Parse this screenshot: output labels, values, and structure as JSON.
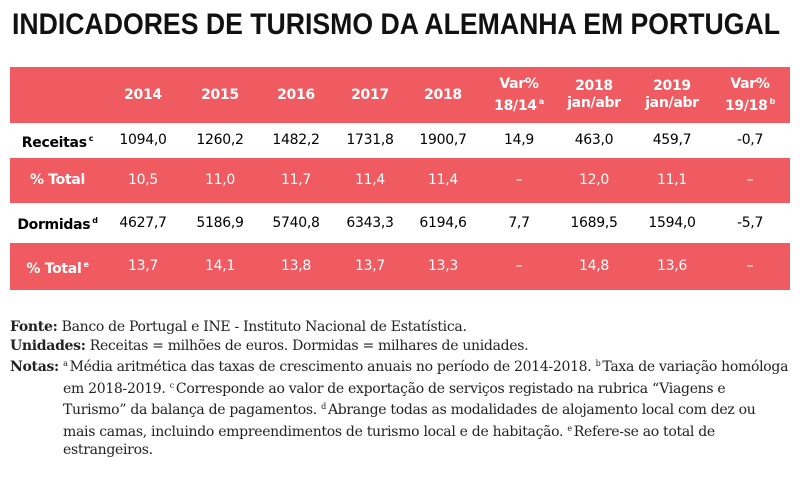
{
  "title": "INDICADORES DE TURISMO DA ALEMANHA EM PORTUGAL",
  "table": {
    "header": [
      {
        "line1": "2014"
      },
      {
        "line1": "2015"
      },
      {
        "line1": "2016"
      },
      {
        "line1": "2017"
      },
      {
        "line1": "2018"
      },
      {
        "line1": "Var%",
        "line2": "18/14",
        "sup": "a"
      },
      {
        "line1": "2018",
        "line2": "jan/abr"
      },
      {
        "line1": "2019",
        "line2": "jan/abr"
      },
      {
        "line1": "Var%",
        "line2": "19/18",
        "sup": "b"
      }
    ],
    "rows": [
      {
        "label": "Receitas",
        "sup": "c",
        "cells": [
          "1094,0",
          "1260,2",
          "1482,2",
          "1731,8",
          "1900,7",
          "14,9",
          "463,0",
          "459,7",
          "-0,7"
        ]
      },
      {
        "label": "% Total",
        "cells": [
          "10,5",
          "11,0",
          "11,7",
          "11,4",
          "11,4",
          "–",
          "12,0",
          "11,1",
          "–"
        ]
      },
      {
        "label": "Dormidas",
        "sup": "d",
        "cells": [
          "4627,7",
          "5186,9",
          "5740,8",
          "6343,3",
          "6194,6",
          "7,7",
          "1689,5",
          "1594,0",
          "-5,7"
        ]
      },
      {
        "label": "% Total",
        "sup": "e",
        "cells": [
          "13,7",
          "14,1",
          "13,8",
          "13,7",
          "13,3",
          "–",
          "14,8",
          "13,6",
          "–"
        ]
      }
    ]
  },
  "footer": {
    "fonte": {
      "label": "Fonte:",
      "text": "Banco de Portugal e INE - Instituto Nacional de Estatística."
    },
    "unidades": {
      "label": "Unidades:",
      "text": "Receitas = milhões de euros. Dormidas = milhares de unidades."
    },
    "notas": {
      "label": "Notas:",
      "items": [
        {
          "sup": "a",
          "text": "Média aritmética das taxas de crescimento anuais no período de 2014-2018."
        },
        {
          "sup": "b",
          "text": "Taxa de variação homóloga em 2018-2019."
        },
        {
          "sup": "c",
          "text": "Corresponde ao valor de exportação de serviços registado na rubrica “Viagens e Turismo” da balança de pagamentos."
        },
        {
          "sup": "d",
          "text": "Abrange todas as modalidades de alojamento local com dez ou mais camas, incluindo empreendimentos de turismo local e de habitação."
        },
        {
          "sup": "e",
          "text": "Refere-se ao total de estrangeiros."
        }
      ]
    }
  }
}
